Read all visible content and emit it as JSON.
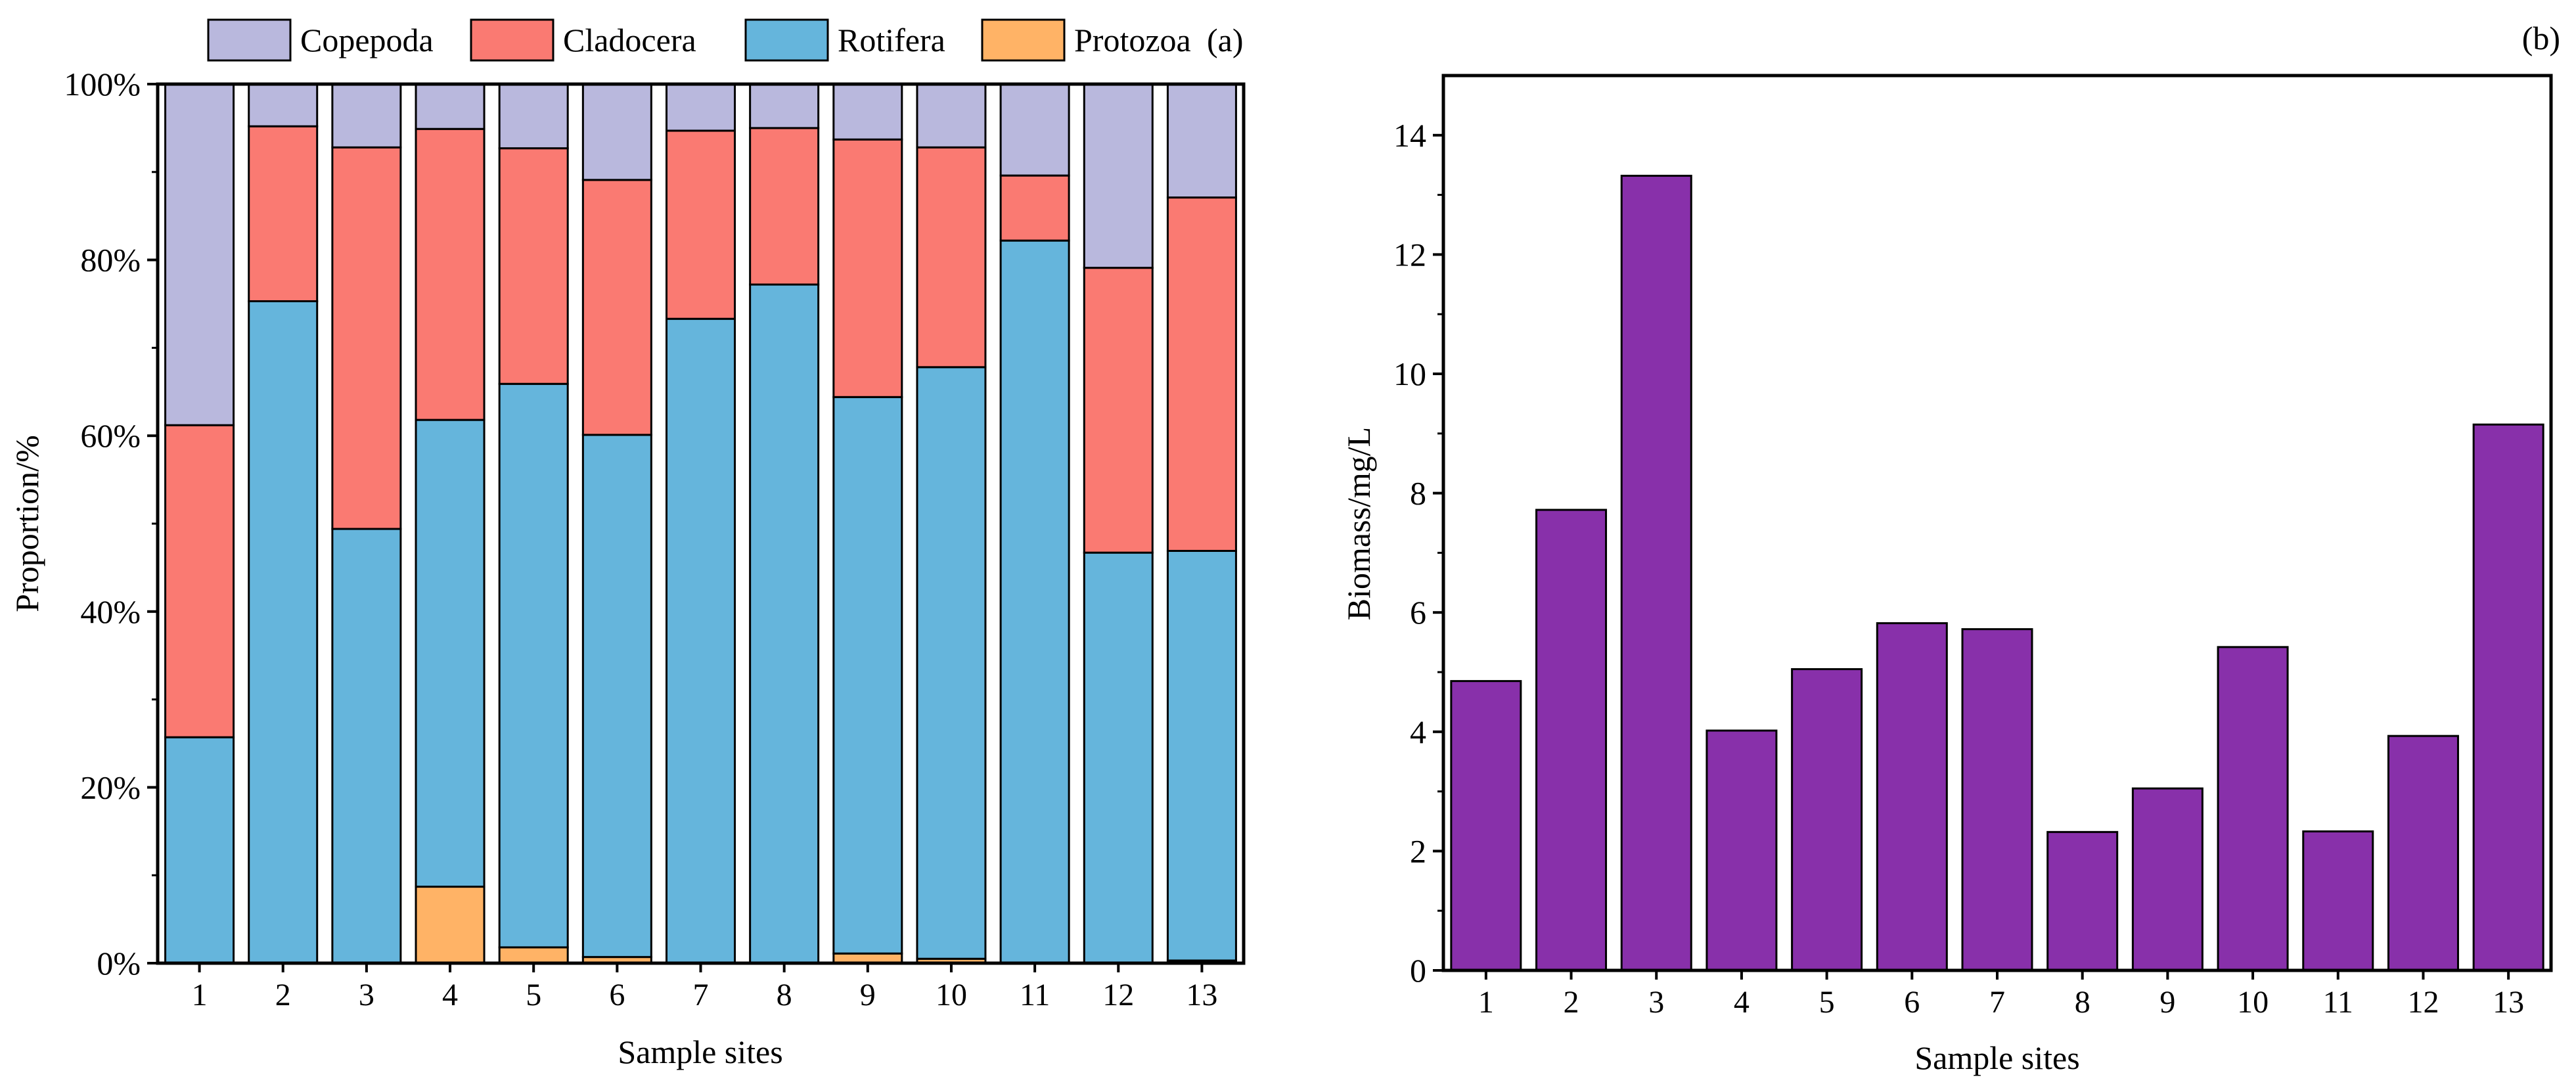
{
  "chart_data": [
    {
      "panel_label": "(a)",
      "type": "bar",
      "stacked": true,
      "xlabel": "Sample sites",
      "ylabel": "Proportion/%",
      "ylim": [
        0,
        100
      ],
      "yticks": [
        "0%",
        "20%",
        "40%",
        "60%",
        "80%",
        "100%"
      ],
      "legend_position": "top",
      "categories": [
        "1",
        "2",
        "3",
        "4",
        "5",
        "6",
        "7",
        "8",
        "9",
        "10",
        "11",
        "12",
        "13"
      ],
      "series": [
        {
          "name": "Protozoa",
          "color": "#ffb366",
          "values": [
            0,
            0,
            0,
            8.7,
            1.8,
            0.7,
            0,
            0,
            1.1,
            0.5,
            0,
            0,
            0.3
          ]
        },
        {
          "name": "Rotifera",
          "color": "#65b5dc",
          "values": [
            25.7,
            75.3,
            49.4,
            53.1,
            64.1,
            59.4,
            73.3,
            77.2,
            63.3,
            67.3,
            82.2,
            46.7,
            46.6
          ]
        },
        {
          "name": "Cladocera",
          "color": "#fa7a72",
          "values": [
            35.5,
            19.9,
            43.4,
            33.1,
            26.8,
            29.0,
            21.4,
            17.8,
            29.3,
            25.0,
            7.4,
            32.4,
            40.2
          ]
        },
        {
          "name": "Copepoda",
          "color": "#b9b8dd",
          "values": [
            38.8,
            4.8,
            7.2,
            5.1,
            7.3,
            10.9,
            5.3,
            5.0,
            6.3,
            7.2,
            10.4,
            20.9,
            12.9
          ]
        }
      ],
      "legend": [
        "Copepoda",
        "Cladocera",
        "Rotifera",
        "Protozoa"
      ]
    },
    {
      "panel_label": "(b)",
      "type": "bar",
      "xlabel": "Sample sites",
      "ylabel": "Biomass/mg/L",
      "ylim": [
        0,
        15
      ],
      "yticks": [
        "0",
        "2",
        "4",
        "6",
        "8",
        "10",
        "12",
        "14"
      ],
      "color": "#8830aa",
      "categories": [
        "1",
        "2",
        "3",
        "4",
        "5",
        "6",
        "7",
        "8",
        "9",
        "10",
        "11",
        "12",
        "13"
      ],
      "values": [
        4.85,
        7.72,
        13.32,
        4.02,
        5.05,
        5.82,
        5.72,
        2.32,
        3.05,
        5.42,
        2.33,
        3.93,
        9.15
      ]
    }
  ]
}
